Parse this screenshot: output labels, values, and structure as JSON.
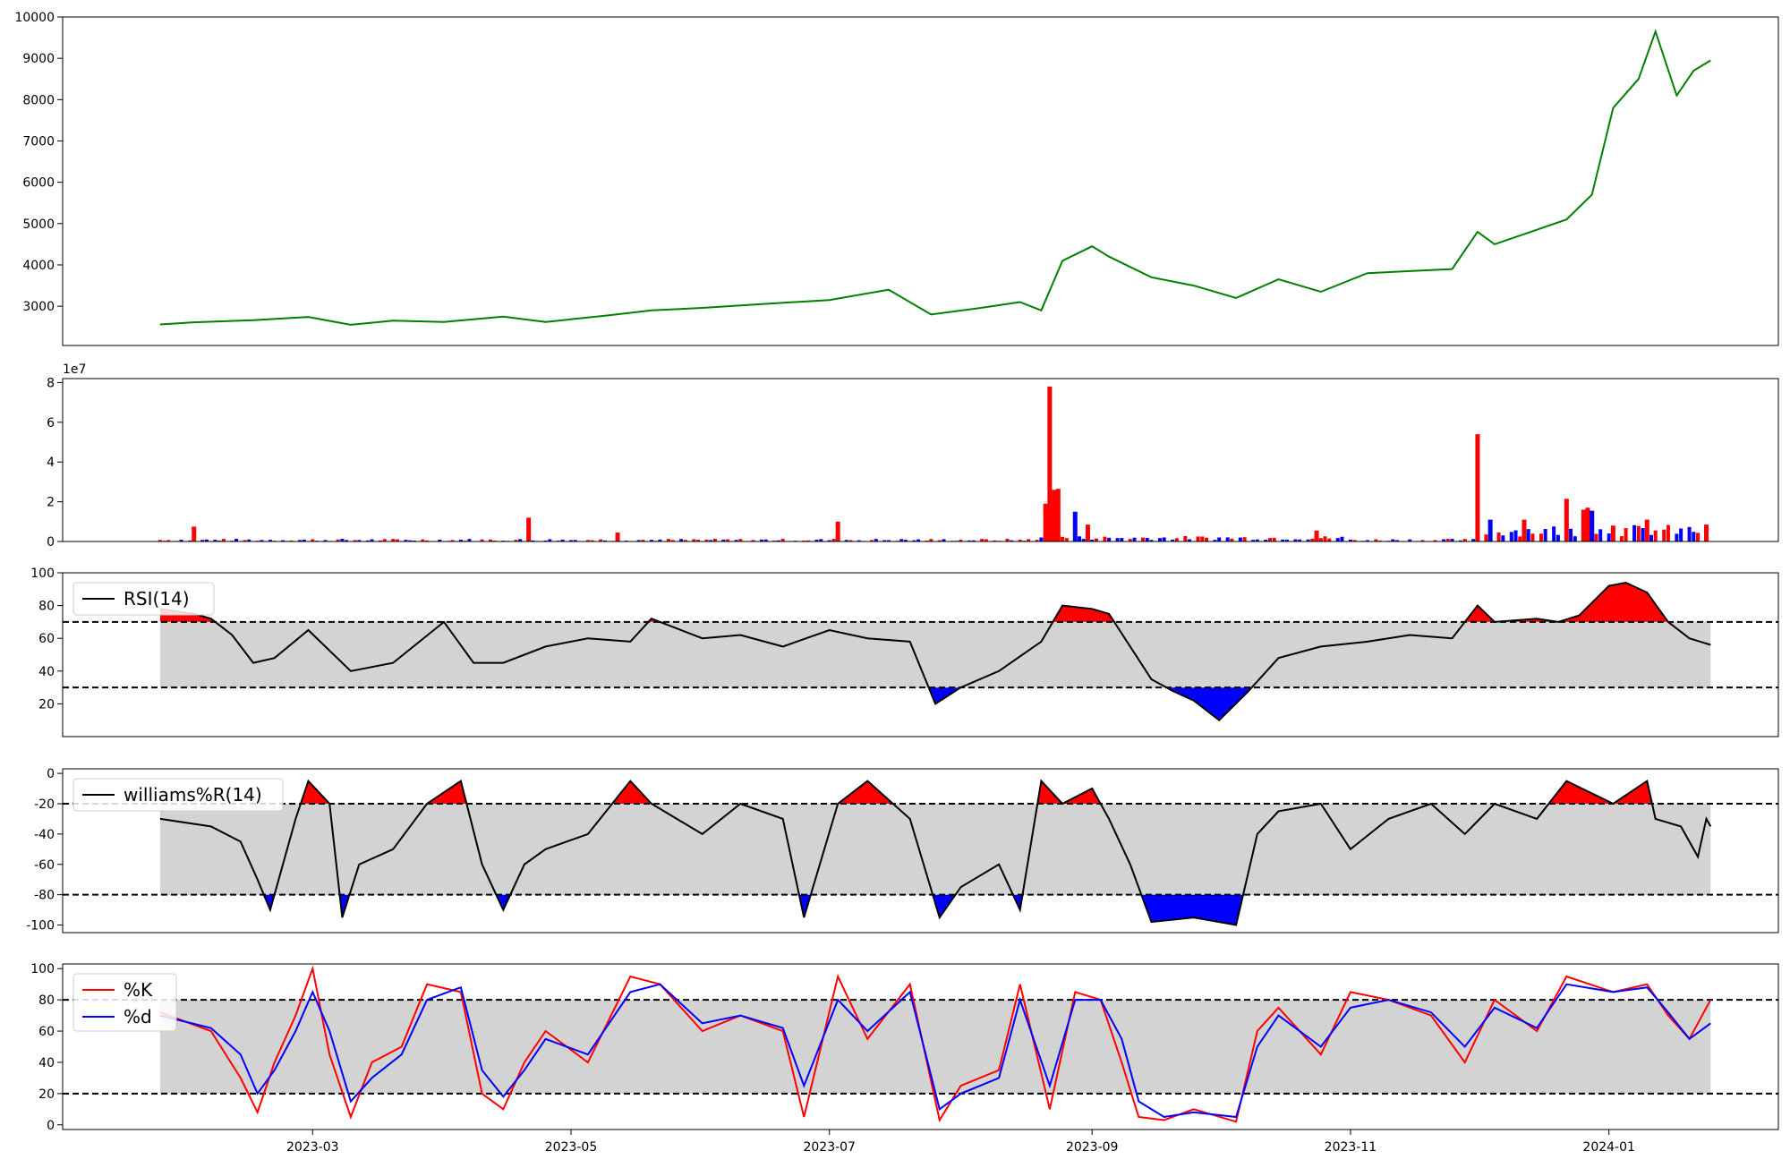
{
  "chart_data": [
    {
      "id": "price",
      "type": "line",
      "title": "",
      "xlabel": "",
      "ylabel": "",
      "ylim": [
        2050,
        10000
      ],
      "yticks": [
        3000,
        4000,
        5000,
        6000,
        7000,
        8000,
        9000,
        10000
      ],
      "line_color": "#008000",
      "x": [
        "2023-01-24",
        "2023-02-01",
        "2023-02-15",
        "2023-02-28",
        "2023-03-10",
        "2023-03-20",
        "2023-04-01",
        "2023-04-15",
        "2023-04-25",
        "2023-05-10",
        "2023-05-20",
        "2023-06-01",
        "2023-06-15",
        "2023-07-01",
        "2023-07-15",
        "2023-07-25",
        "2023-08-05",
        "2023-08-15",
        "2023-08-20",
        "2023-08-25",
        "2023-09-01",
        "2023-09-05",
        "2023-09-15",
        "2023-09-25",
        "2023-10-05",
        "2023-10-15",
        "2023-10-25",
        "2023-11-05",
        "2023-11-15",
        "2023-11-25",
        "2023-12-01",
        "2023-12-05",
        "2023-12-15",
        "2023-12-22",
        "2023-12-28",
        "2024-01-02",
        "2024-01-08",
        "2024-01-12",
        "2024-01-17",
        "2024-01-21",
        "2024-01-25"
      ],
      "y": [
        2560,
        2610,
        2660,
        2740,
        2550,
        2650,
        2620,
        2750,
        2620,
        2780,
        2900,
        2960,
        3050,
        3150,
        3400,
        2800,
        2950,
        3100,
        2900,
        4100,
        4450,
        4200,
        3700,
        3500,
        3200,
        3650,
        3350,
        3800,
        3850,
        3900,
        4800,
        4500,
        4850,
        5100,
        5700,
        7800,
        8500,
        9650,
        8100,
        8700,
        8950
      ]
    },
    {
      "id": "volume",
      "type": "bar",
      "title": "",
      "xlabel": "",
      "ylabel": "",
      "scale_label": "1e7",
      "ylim": [
        0,
        8.2
      ],
      "yticks": [
        0,
        2,
        4,
        6,
        8
      ],
      "up_color": "#ff0000",
      "down_color": "#0000ff",
      "spikes": [
        {
          "x": "2023-02-01",
          "value": 0.75,
          "color": "red"
        },
        {
          "x": "2023-04-21",
          "value": 1.2,
          "color": "red"
        },
        {
          "x": "2023-05-12",
          "value": 0.45,
          "color": "red"
        },
        {
          "x": "2023-07-03",
          "value": 1.0,
          "color": "red"
        },
        {
          "x": "2023-08-21",
          "value": 1.9,
          "color": "red"
        },
        {
          "x": "2023-08-22",
          "value": 7.8,
          "color": "red"
        },
        {
          "x": "2023-08-23",
          "value": 2.6,
          "color": "red"
        },
        {
          "x": "2023-08-24",
          "value": 2.65,
          "color": "red"
        },
        {
          "x": "2023-08-28",
          "value": 1.5,
          "color": "blue"
        },
        {
          "x": "2023-08-31",
          "value": 0.85,
          "color": "red"
        },
        {
          "x": "2023-10-24",
          "value": 0.55,
          "color": "red"
        },
        {
          "x": "2023-12-01",
          "value": 5.4,
          "color": "red"
        },
        {
          "x": "2023-12-04",
          "value": 1.1,
          "color": "blue"
        },
        {
          "x": "2023-12-12",
          "value": 1.1,
          "color": "red"
        },
        {
          "x": "2023-12-22",
          "value": 2.15,
          "color": "red"
        },
        {
          "x": "2023-12-26",
          "value": 1.6,
          "color": "red"
        },
        {
          "x": "2023-12-27",
          "value": 1.7,
          "color": "red"
        },
        {
          "x": "2023-12-28",
          "value": 1.55,
          "color": "blue"
        },
        {
          "x": "2024-01-02",
          "value": 0.8,
          "color": "red"
        },
        {
          "x": "2024-01-10",
          "value": 1.1,
          "color": "red"
        },
        {
          "x": "2024-01-24",
          "value": 0.85,
          "color": "red"
        }
      ]
    },
    {
      "id": "rsi",
      "type": "line",
      "title": "",
      "xlabel": "",
      "ylabel": "",
      "ylim": [
        0,
        100
      ],
      "yticks": [
        20,
        40,
        60,
        80,
        100
      ],
      "upper_threshold": 70,
      "lower_threshold": 30,
      "series": [
        {
          "name": "RSI(14)",
          "color": "#000000"
        }
      ],
      "x": [
        "2023-01-24",
        "2023-02-01",
        "2023-02-05",
        "2023-02-10",
        "2023-02-15",
        "2023-02-20",
        "2023-02-28",
        "2023-03-10",
        "2023-03-20",
        "2023-04-01",
        "2023-04-08",
        "2023-04-15",
        "2023-04-25",
        "2023-05-05",
        "2023-05-15",
        "2023-05-20",
        "2023-06-01",
        "2023-06-10",
        "2023-06-20",
        "2023-07-01",
        "2023-07-10",
        "2023-07-20",
        "2023-07-26",
        "2023-08-01",
        "2023-08-10",
        "2023-08-20",
        "2023-08-25",
        "2023-09-01",
        "2023-09-05",
        "2023-09-10",
        "2023-09-15",
        "2023-09-20",
        "2023-09-25",
        "2023-10-01",
        "2023-10-08",
        "2023-10-15",
        "2023-10-25",
        "2023-11-05",
        "2023-11-15",
        "2023-11-25",
        "2023-12-01",
        "2023-12-05",
        "2023-12-15",
        "2023-12-20",
        "2023-12-25",
        "2024-01-01",
        "2024-01-05",
        "2024-01-10",
        "2024-01-15",
        "2024-01-20",
        "2024-01-25"
      ],
      "y": [
        78,
        75,
        72,
        62,
        45,
        48,
        65,
        40,
        45,
        70,
        45,
        45,
        55,
        60,
        58,
        72,
        60,
        62,
        55,
        65,
        60,
        58,
        20,
        30,
        40,
        58,
        80,
        78,
        75,
        55,
        35,
        28,
        22,
        10,
        28,
        48,
        55,
        58,
        62,
        60,
        80,
        70,
        72,
        70,
        74,
        92,
        94,
        88,
        70,
        60,
        56
      ]
    },
    {
      "id": "williams",
      "type": "line",
      "title": "",
      "xlabel": "",
      "ylabel": "",
      "ylim": [
        -105,
        3
      ],
      "yticks": [
        -100,
        -80,
        -60,
        -40,
        -20,
        0
      ],
      "upper_threshold": -20,
      "lower_threshold": -80,
      "series": [
        {
          "name": "williams%R(14)",
          "color": "#000000"
        }
      ],
      "x": [
        "2023-01-24",
        "2023-02-05",
        "2023-02-12",
        "2023-02-16",
        "2023-02-19",
        "2023-02-25",
        "2023-02-28",
        "2023-03-05",
        "2023-03-08",
        "2023-03-12",
        "2023-03-20",
        "2023-03-28",
        "2023-04-05",
        "2023-04-10",
        "2023-04-15",
        "2023-04-20",
        "2023-04-25",
        "2023-05-05",
        "2023-05-15",
        "2023-05-20",
        "2023-06-01",
        "2023-06-10",
        "2023-06-20",
        "2023-06-25",
        "2023-07-03",
        "2023-07-10",
        "2023-07-20",
        "2023-07-27",
        "2023-08-01",
        "2023-08-10",
        "2023-08-15",
        "2023-08-20",
        "2023-08-25",
        "2023-09-01",
        "2023-09-05",
        "2023-09-10",
        "2023-09-15",
        "2023-09-25",
        "2023-10-05",
        "2023-10-10",
        "2023-10-15",
        "2023-10-25",
        "2023-11-01",
        "2023-11-10",
        "2023-11-20",
        "2023-11-28",
        "2023-12-05",
        "2023-12-15",
        "2023-12-22",
        "2024-01-02",
        "2024-01-10",
        "2024-01-12",
        "2024-01-18",
        "2024-01-22",
        "2024-01-24",
        "2024-01-25"
      ],
      "y": [
        -30,
        -35,
        -45,
        -70,
        -90,
        -30,
        -5,
        -20,
        -95,
        -60,
        -50,
        -20,
        -5,
        -60,
        -90,
        -60,
        -50,
        -40,
        -5,
        -20,
        -40,
        -20,
        -30,
        -95,
        -20,
        -5,
        -30,
        -95,
        -75,
        -60,
        -90,
        -5,
        -20,
        -10,
        -30,
        -60,
        -98,
        -95,
        -100,
        -40,
        -25,
        -20,
        -50,
        -30,
        -20,
        -40,
        -20,
        -30,
        -5,
        -20,
        -5,
        -30,
        -35,
        -55,
        -30,
        -35
      ]
    },
    {
      "id": "stochastic",
      "type": "line",
      "title": "",
      "xlabel": "",
      "ylabel": "",
      "ylim": [
        -3,
        103
      ],
      "yticks": [
        0,
        20,
        40,
        60,
        80,
        100
      ],
      "upper_threshold": 80,
      "lower_threshold": 20,
      "x": [
        "2023-01-24",
        "2023-02-05",
        "2023-02-12",
        "2023-02-16",
        "2023-02-20",
        "2023-02-25",
        "2023-03-01",
        "2023-03-05",
        "2023-03-10",
        "2023-03-15",
        "2023-03-22",
        "2023-03-28",
        "2023-04-05",
        "2023-04-10",
        "2023-04-15",
        "2023-04-20",
        "2023-04-25",
        "2023-05-05",
        "2023-05-15",
        "2023-05-22",
        "2023-06-01",
        "2023-06-10",
        "2023-06-20",
        "2023-06-25",
        "2023-07-03",
        "2023-07-10",
        "2023-07-20",
        "2023-07-27",
        "2023-08-01",
        "2023-08-10",
        "2023-08-15",
        "2023-08-22",
        "2023-08-28",
        "2023-09-03",
        "2023-09-08",
        "2023-09-12",
        "2023-09-18",
        "2023-09-25",
        "2023-10-05",
        "2023-10-10",
        "2023-10-15",
        "2023-10-25",
        "2023-11-01",
        "2023-11-10",
        "2023-11-20",
        "2023-11-28",
        "2023-12-05",
        "2023-12-15",
        "2023-12-22",
        "2024-01-02",
        "2024-01-10",
        "2024-01-15",
        "2024-01-20",
        "2024-01-25"
      ],
      "series": [
        {
          "name": "%K",
          "color": "#ff0000",
          "values": [
            72,
            60,
            30,
            8,
            40,
            70,
            100,
            45,
            5,
            40,
            50,
            90,
            85,
            20,
            10,
            40,
            60,
            40,
            95,
            90,
            60,
            70,
            60,
            5,
            95,
            55,
            90,
            3,
            25,
            35,
            90,
            10,
            85,
            80,
            40,
            5,
            3,
            10,
            2,
            60,
            75,
            45,
            85,
            80,
            70,
            40,
            80,
            60,
            95,
            85,
            90,
            70,
            55,
            80
          ]
        },
        {
          "name": "%d",
          "color": "#0000ff",
          "values": [
            70,
            62,
            45,
            20,
            35,
            60,
            85,
            60,
            15,
            30,
            45,
            80,
            88,
            35,
            18,
            35,
            55,
            45,
            85,
            90,
            65,
            70,
            62,
            25,
            80,
            60,
            85,
            10,
            20,
            30,
            80,
            25,
            80,
            80,
            55,
            15,
            5,
            8,
            5,
            50,
            70,
            50,
            75,
            80,
            72,
            50,
            75,
            62,
            90,
            85,
            88,
            72,
            55,
            65
          ]
        }
      ]
    }
  ],
  "x_axis": {
    "tick_labels": [
      "2023-03",
      "2023-05",
      "2023-07",
      "2023-09",
      "2023-11",
      "2024-01"
    ]
  },
  "threshold_fill_colors": {
    "above": "#ff0000",
    "below": "#0000ff",
    "band": "#d3d3d3"
  }
}
